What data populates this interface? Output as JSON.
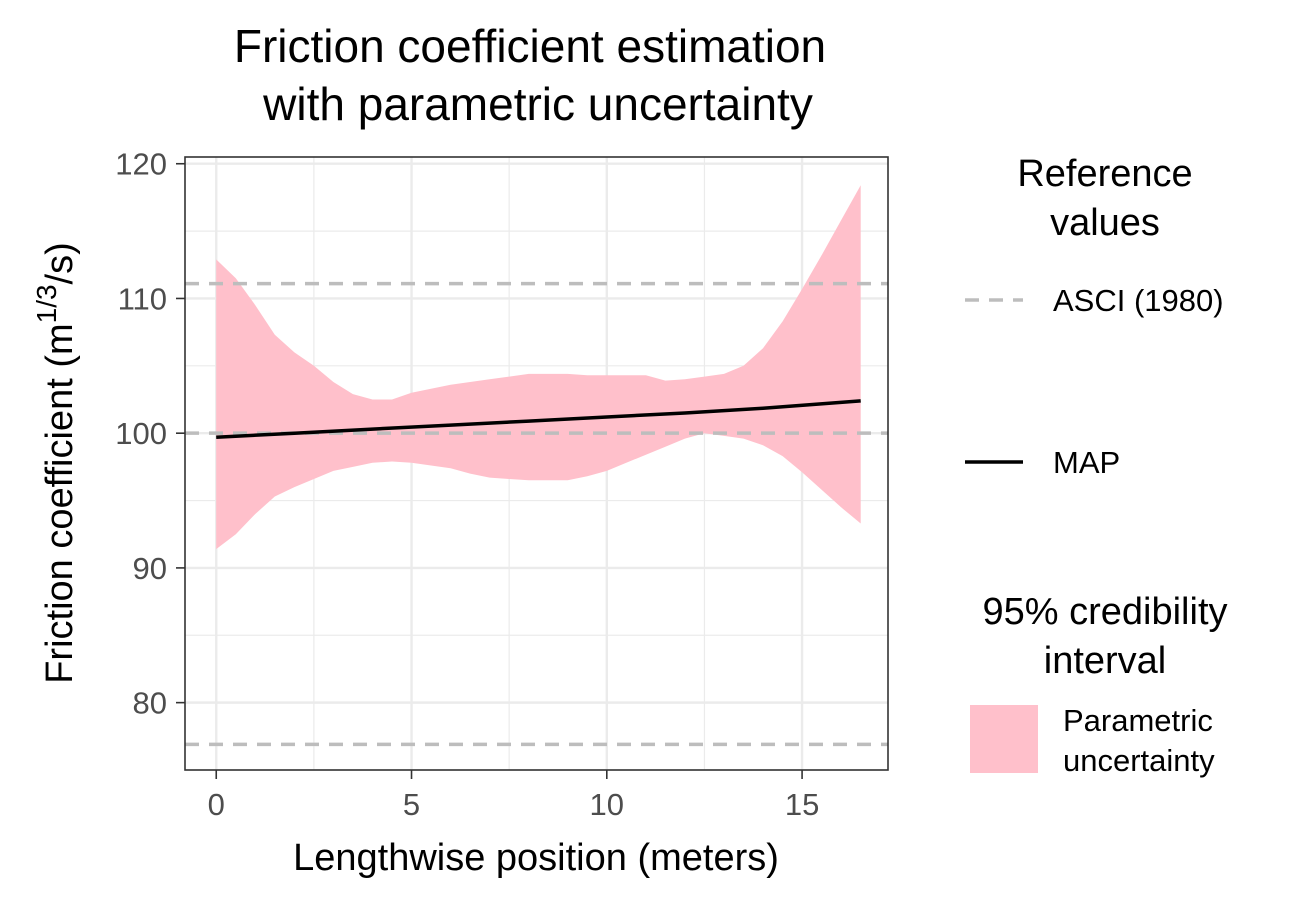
{
  "chart_data": {
    "type": "area",
    "title_line1": "Friction coefficient estimation",
    "title_line2": "with parametric uncertainty",
    "xlabel": "Lengthwise position (meters)",
    "ylabel": "Friction coefficient (m",
    "ylabel_sup1": "1",
    "ylabel_sup2": "/3",
    "ylabel_suffix": "/s)",
    "xlim": [
      -0.8,
      17.2
    ],
    "ylim": [
      75.0,
      120.5
    ],
    "x_ticks": [
      0,
      5,
      10,
      15
    ],
    "y_ticks": [
      80,
      90,
      100,
      110,
      120
    ],
    "grid": true,
    "reference_lines": {
      "name": "ASCI (1980)",
      "color": "#bdbdbd",
      "values": [
        111.1,
        100.0,
        76.9
      ]
    },
    "map_line": {
      "name": "MAP",
      "color": "#000000",
      "x": [
        0,
        2,
        4,
        6,
        8,
        10,
        12,
        14,
        16.5
      ],
      "y": [
        99.7,
        100.0,
        100.3,
        100.6,
        100.9,
        101.2,
        101.5,
        101.85,
        102.4
      ]
    },
    "credibility_band": {
      "name": "Parametric uncertainty",
      "color": "#ffc0cb",
      "x": [
        0,
        0.5,
        1,
        1.5,
        2,
        2.5,
        3,
        3.5,
        4,
        4.5,
        5,
        5.5,
        6,
        6.5,
        7,
        7.5,
        8,
        8.5,
        9,
        9.5,
        10,
        10.5,
        11,
        11.5,
        12,
        12.5,
        13,
        13.5,
        14,
        14.5,
        15,
        15.5,
        16,
        16.5
      ],
      "upper": [
        112.9,
        111.5,
        109.5,
        107.3,
        106.0,
        105.0,
        103.8,
        102.9,
        102.5,
        102.5,
        103.0,
        103.3,
        103.6,
        103.8,
        104.0,
        104.2,
        104.4,
        104.4,
        104.4,
        104.3,
        104.3,
        104.3,
        104.3,
        103.9,
        104.0,
        104.2,
        104.4,
        105.0,
        106.3,
        108.3,
        110.7,
        113.2,
        115.8,
        118.4
      ],
      "lower": [
        91.4,
        92.5,
        94.0,
        95.3,
        96.0,
        96.6,
        97.2,
        97.5,
        97.8,
        97.9,
        97.8,
        97.6,
        97.4,
        97.0,
        96.7,
        96.6,
        96.5,
        96.5,
        96.5,
        96.8,
        97.2,
        97.8,
        98.4,
        99.0,
        99.6,
        100.0,
        99.8,
        99.6,
        99.1,
        98.3,
        97.1,
        95.8,
        94.5,
        93.3
      ]
    }
  },
  "legend": {
    "reference_title_line1": "Reference",
    "reference_title_line2": "values",
    "reference_item": "ASCI (1980)",
    "map_item": "MAP",
    "interval_title_line1": "95% credibility",
    "interval_title_line2": "interval",
    "interval_item_line1": "Parametric",
    "interval_item_line2": "uncertainty",
    "position": "right"
  }
}
